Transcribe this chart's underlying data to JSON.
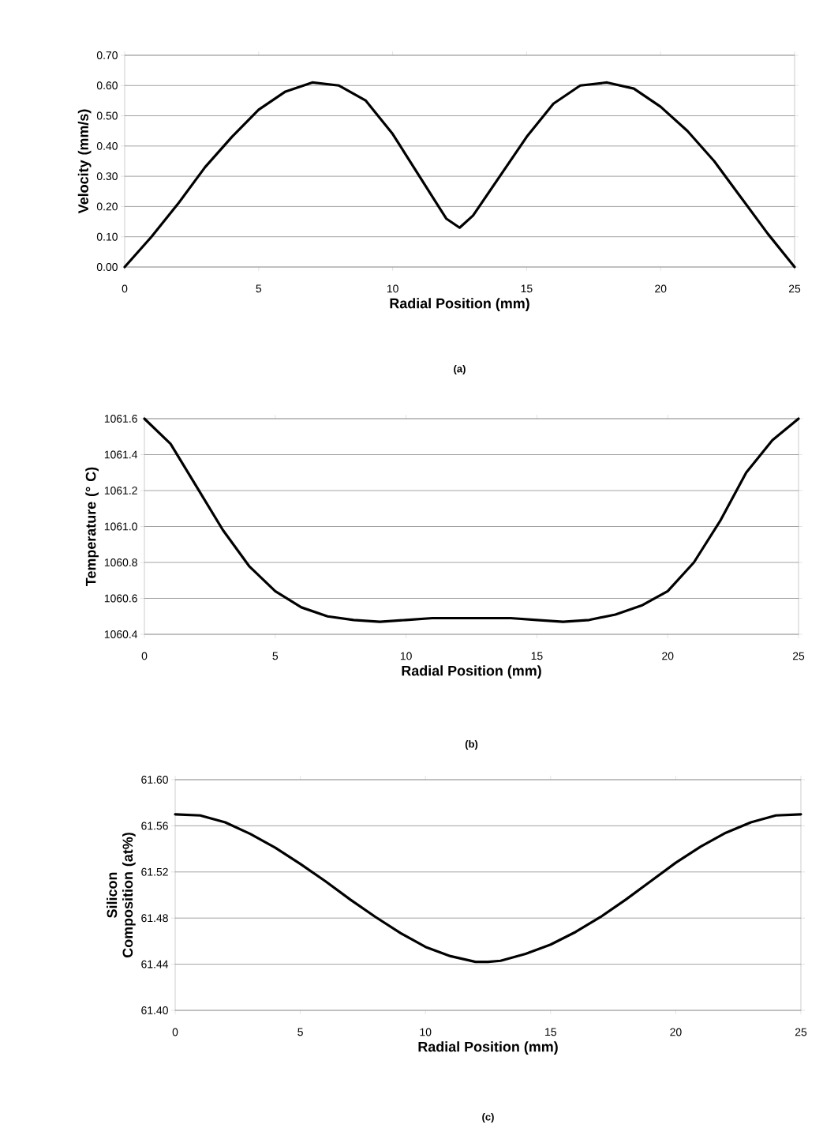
{
  "chart_data": [
    {
      "type": "line",
      "xlabel": "Radial Position (mm)",
      "ylabel": "Velocity (mm/s)",
      "annotations": [
        "(a)"
      ],
      "x": [
        0,
        1,
        2,
        3,
        4,
        5,
        6,
        7,
        8,
        9,
        10,
        11,
        12,
        12.5,
        13,
        14,
        15,
        16,
        17,
        18,
        19,
        20,
        21,
        22,
        23,
        24,
        25
      ],
      "values": [
        0.0,
        0.1,
        0.21,
        0.33,
        0.43,
        0.52,
        0.58,
        0.61,
        0.6,
        0.55,
        0.44,
        0.3,
        0.16,
        0.13,
        0.17,
        0.3,
        0.43,
        0.54,
        0.6,
        0.61,
        0.59,
        0.53,
        0.45,
        0.35,
        0.23,
        0.11,
        0.0
      ],
      "color": "#000000",
      "grid": "y",
      "xlim": [
        0,
        25
      ],
      "xticks": [
        0,
        5,
        10,
        15,
        20,
        25
      ],
      "ylim": [
        0,
        0.7
      ],
      "yticks": [
        {
          "value": 0,
          "label": "0.00"
        },
        {
          "value": 0.1,
          "label": "0.10"
        },
        {
          "value": 0.2,
          "label": "0.20"
        },
        {
          "value": 0.3,
          "label": "0.30"
        },
        {
          "value": 0.4,
          "label": "0.40"
        },
        {
          "value": 0.5,
          "label": "0.50"
        },
        {
          "value": 0.6,
          "label": "0.60"
        },
        {
          "value": 0.7,
          "label": "0.70"
        }
      ]
    },
    {
      "type": "line",
      "xlabel": "Radial Position (mm)",
      "ylabel": "Temperature (° C)",
      "annotations": [
        "(b)"
      ],
      "x": [
        0,
        1,
        2,
        3,
        4,
        5,
        6,
        7,
        8,
        9,
        10,
        11,
        12,
        13,
        14,
        15,
        16,
        17,
        18,
        19,
        20,
        21,
        22,
        23,
        24,
        25
      ],
      "values": [
        1061.6,
        1061.46,
        1061.22,
        1060.98,
        1060.78,
        1060.64,
        1060.55,
        1060.5,
        1060.48,
        1060.47,
        1060.48,
        1060.49,
        1060.49,
        1060.49,
        1060.49,
        1060.48,
        1060.47,
        1060.48,
        1060.51,
        1060.56,
        1060.64,
        1060.8,
        1061.03,
        1061.3,
        1061.48,
        1061.6
      ],
      "color": "#000000",
      "grid": "y",
      "xlim": [
        0,
        25
      ],
      "xticks": [
        0,
        5,
        10,
        15,
        20,
        25
      ],
      "ylim": [
        1060.4,
        1061.6
      ],
      "yticks": [
        1060.4,
        1060.6,
        1060.8,
        {
          "value": 1061.0,
          "label": "1061.0"
        },
        1061.2,
        1061.4,
        1061.6
      ]
    },
    {
      "type": "line",
      "xlabel": "Radial Position (mm)",
      "ylabel": "Silicon Composition (at%)",
      "annotations": [
        "(c)"
      ],
      "x": [
        0,
        1,
        2,
        3,
        4,
        5,
        6,
        7,
        8,
        9,
        10,
        11,
        12,
        12.5,
        13,
        14,
        15,
        16,
        17,
        18,
        19,
        20,
        21,
        22,
        23,
        24,
        25
      ],
      "values": [
        61.57,
        61.569,
        61.563,
        61.553,
        61.541,
        61.527,
        61.512,
        61.496,
        61.481,
        61.467,
        61.455,
        61.447,
        61.442,
        61.442,
        61.443,
        61.449,
        61.457,
        61.468,
        61.481,
        61.496,
        61.512,
        61.528,
        61.542,
        61.554,
        61.563,
        61.569,
        61.57
      ],
      "color": "#000000",
      "grid": "y",
      "xlim": [
        0,
        25
      ],
      "xticks": [
        0,
        5,
        10,
        15,
        20,
        25
      ],
      "ylim": [
        61.4,
        61.6
      ],
      "yticks": [
        {
          "value": 61.4,
          "label": "61.40"
        },
        {
          "value": 61.44,
          "label": "61.44"
        },
        {
          "value": 61.48,
          "label": "61.48"
        },
        {
          "value": 61.52,
          "label": "61.52"
        },
        {
          "value": 61.56,
          "label": "61.56"
        },
        {
          "value": 61.6,
          "label": "61.60"
        }
      ]
    }
  ]
}
